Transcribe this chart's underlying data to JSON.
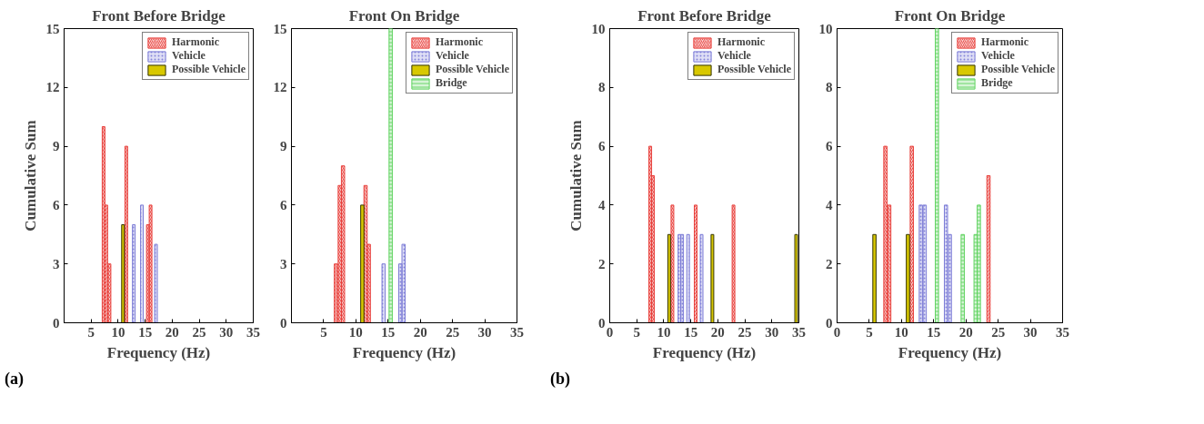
{
  "chart_data": [
    {
      "type": "bar",
      "title": "Front Before Bridge",
      "xlabel": "Frequency (Hz)",
      "ylabel": "Cumulative Sum",
      "xlim": [
        0,
        35
      ],
      "xticks": [
        5,
        10,
        15,
        20,
        25,
        30,
        35
      ],
      "ylim": [
        0,
        15
      ],
      "yticks": [
        0,
        3,
        6,
        9,
        12,
        15
      ],
      "grid": false,
      "legend": "top right",
      "annotations": [
        "(a)"
      ],
      "series": [
        {
          "name": "Harmonic",
          "color": "#e8403c",
          "x": [
            7.3,
            7.8,
            8.4,
            11.5,
            15.5,
            16
          ],
          "values": [
            10,
            6,
            3,
            9,
            5,
            6
          ]
        },
        {
          "name": "Vehicle",
          "color": "#7b7bd6",
          "x": [
            12.9,
            14.4,
            17
          ],
          "values": [
            5,
            6,
            4
          ]
        },
        {
          "name": "Possible Vehicle",
          "color": "#d8c800",
          "x": [
            10.9
          ],
          "values": [
            5
          ]
        }
      ]
    },
    {
      "type": "bar",
      "title": "Front On Bridge",
      "xlabel": "Frequency (Hz)",
      "xlim": [
        0,
        35
      ],
      "xticks": [
        5,
        10,
        15,
        20,
        25,
        30,
        35
      ],
      "ylim": [
        0,
        15
      ],
      "yticks": [
        0,
        3,
        6,
        9,
        12,
        15
      ],
      "grid": false,
      "legend": "top right",
      "series": [
        {
          "name": "Harmonic",
          "color": "#e8403c",
          "x": [
            6.9,
            7.5,
            8.0,
            11.5,
            12
          ],
          "values": [
            3,
            7,
            8,
            7,
            4
          ]
        },
        {
          "name": "Vehicle",
          "color": "#7b7bd6",
          "x": [
            14.3,
            16.9,
            17.4
          ],
          "values": [
            3,
            3,
            4
          ]
        },
        {
          "name": "Possible Vehicle",
          "color": "#d8c800",
          "x": [
            11.0
          ],
          "values": [
            6
          ]
        },
        {
          "name": "Bridge",
          "color": "#5fd35f",
          "x": [
            15.4
          ],
          "values": [
            15
          ]
        }
      ]
    },
    {
      "type": "bar",
      "title": "Front Before Bridge",
      "xlabel": "Frequency (Hz)",
      "ylabel": "Cumulative Sum",
      "xlim": [
        0,
        35
      ],
      "xticks": [
        0,
        5,
        10,
        15,
        20,
        25,
        30,
        35
      ],
      "ylim": [
        0,
        10
      ],
      "yticks": [
        0,
        2,
        4,
        6,
        8,
        10
      ],
      "grid": false,
      "legend": "top right",
      "annotations": [
        "(b)"
      ],
      "series": [
        {
          "name": "Harmonic",
          "color": "#e8403c",
          "x": [
            7.5,
            8.0,
            11.6,
            15.9,
            22.9
          ],
          "values": [
            6,
            5,
            4,
            4,
            4
          ]
        },
        {
          "name": "Vehicle",
          "color": "#7b7bd6",
          "x": [
            12.9,
            13.4,
            14.5,
            17
          ],
          "values": [
            3,
            3,
            3,
            3
          ]
        },
        {
          "name": "Possible Vehicle",
          "color": "#d8c800",
          "x": [
            11.0,
            19,
            34.5
          ],
          "values": [
            3,
            3,
            3
          ]
        }
      ]
    },
    {
      "type": "bar",
      "title": "Front On Bridge",
      "xlabel": "Frequency (Hz)",
      "xlim": [
        0,
        35
      ],
      "xticks": [
        0,
        5,
        10,
        15,
        20,
        25,
        30,
        35
      ],
      "ylim": [
        0,
        10
      ],
      "yticks": [
        0,
        2,
        4,
        6,
        8,
        10
      ],
      "grid": false,
      "legend": "top right",
      "series": [
        {
          "name": "Harmonic",
          "color": "#e8403c",
          "x": [
            7.5,
            8.1,
            11.6,
            23.5
          ],
          "values": [
            6,
            4,
            6,
            5
          ]
        },
        {
          "name": "Vehicle",
          "color": "#7b7bd6",
          "x": [
            13.0,
            13.6,
            16.9,
            17.5
          ],
          "values": [
            4,
            4,
            4,
            3
          ]
        },
        {
          "name": "Possible Vehicle",
          "color": "#d8c800",
          "x": [
            5.8,
            11.0
          ],
          "values": [
            3,
            3
          ]
        },
        {
          "name": "Bridge",
          "color": "#5fd35f",
          "x": [
            15.5,
            19.5,
            21.5,
            22.0
          ],
          "values": [
            10,
            3,
            3,
            4
          ]
        }
      ]
    }
  ]
}
